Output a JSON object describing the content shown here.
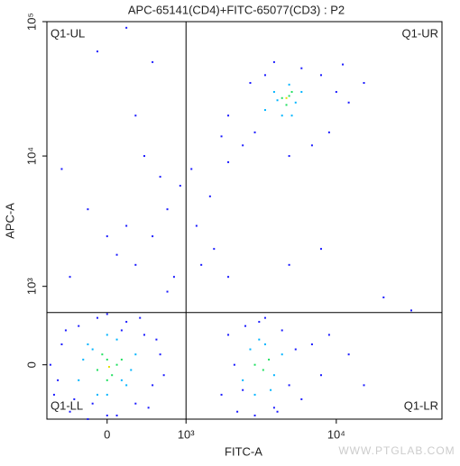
{
  "chart_data": {
    "type": "scatter",
    "title": "APC-65141(CD4)+FITC-65077(CD3) : P2",
    "x_label": "FITC-A",
    "y_label": "APC-A",
    "xscale": "biexponential",
    "yscale": "biexponential",
    "xlim": [
      -700,
      47000
    ],
    "ylim": [
      -600,
      100000
    ],
    "xticks": [
      0,
      {
        "value": 1000,
        "label": "10³"
      },
      {
        "value": 10000,
        "label": "10⁴"
      }
    ],
    "yticks": [
      0,
      {
        "value": 1000,
        "label": "10³"
      },
      {
        "value": 10000,
        "label": "10⁴"
      },
      {
        "value": 100000,
        "label": "10⁵"
      }
    ],
    "gate": {
      "x": 1000,
      "y": 570
    },
    "quadrant_labels": {
      "ul": "Q1-UL",
      "ur": "Q1-UR",
      "ll": "Q1-LL",
      "lr": "Q1-LR"
    },
    "watermark": "WWW.PTGLAB.COM",
    "series": [
      {
        "color": "#1a1aff",
        "x": [
          -600,
          -500,
          -400,
          -300,
          -200,
          -100,
          100,
          200,
          300,
          400,
          500,
          600,
          -650,
          650,
          -450,
          450,
          -350,
          350,
          0,
          0,
          -550,
          550,
          -150,
          150,
          1800,
          2000,
          2300,
          2600,
          3000,
          3500,
          4000,
          4500,
          5000,
          5500,
          6000,
          7000,
          8000,
          9000,
          2200,
          12000,
          15000,
          2500,
          3200,
          4200,
          1500,
          2000,
          2500,
          3000,
          3500,
          4000,
          6000,
          8000,
          10000,
          12000,
          9000,
          7000,
          5000,
          2000,
          2800,
          15000,
          11000,
          1800,
          300,
          500,
          700,
          900,
          1200,
          1100,
          400,
          600,
          800,
          200,
          1300,
          1600,
          -200,
          100,
          -400,
          300,
          -100,
          200,
          500,
          -500,
          0,
          700,
          2000,
          5000,
          8000,
          20000,
          30000
        ],
        "y": [
          -300,
          200,
          -500,
          400,
          -600,
          500,
          -550,
          450,
          -400,
          300,
          -200,
          100,
          0,
          -100,
          350,
          -450,
          -350,
          500,
          -550,
          550,
          -150,
          250,
          -400,
          350,
          -300,
          300,
          -500,
          400,
          -550,
          500,
          -450,
          350,
          -200,
          150,
          -350,
          200,
          -100,
          300,
          0,
          100,
          -200,
          -250,
          450,
          -500,
          5000,
          9000,
          12000,
          15000,
          40000,
          50000,
          45000,
          40000,
          30000,
          25000,
          15000,
          12000,
          10000,
          20000,
          35000,
          35000,
          48000,
          14000,
          1500,
          2500,
          4000,
          6000,
          3000,
          8000,
          10000,
          7000,
          1200,
          3000,
          1500,
          2000,
          4000,
          1800,
          1200,
          20000,
          60000,
          90000,
          50000,
          8000,
          2500,
          900,
          1200,
          1500,
          2000,
          800,
          600
        ]
      },
      {
        "color": "#00b4ff",
        "x": [
          -300,
          -200,
          -100,
          100,
          200,
          300,
          -250,
          250,
          0,
          0,
          -150,
          150,
          2500,
          2800,
          3000,
          3500,
          4000,
          4500,
          3800,
          3200,
          3500,
          4000,
          4500,
          5000,
          5500,
          6000,
          4200,
          5200
        ],
        "y": [
          -150,
          200,
          -300,
          250,
          -200,
          100,
          50,
          -50,
          300,
          -300,
          150,
          -150,
          -150,
          150,
          -300,
          200,
          -100,
          100,
          -250,
          250,
          22000,
          30000,
          20000,
          34000,
          25000,
          30000,
          26000,
          20000
        ]
      },
      {
        "color": "#20e060",
        "x": [
          -100,
          0,
          50,
          100,
          -50,
          0,
          150,
          3000,
          3400,
          3700,
          4500,
          5000,
          4800,
          5200
        ],
        "y": [
          -50,
          50,
          -100,
          0,
          100,
          -150,
          50,
          0,
          -50,
          50,
          27000,
          28000,
          24000,
          30000
        ]
      },
      {
        "color": "#e8e000",
        "x": [
          20,
          4800
        ],
        "y": [
          -20,
          27000
        ]
      }
    ]
  }
}
